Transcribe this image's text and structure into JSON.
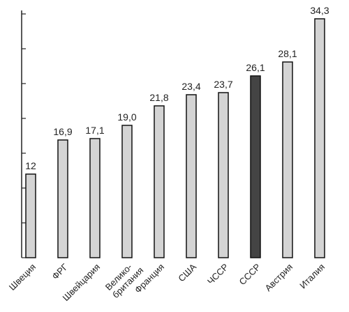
{
  "chart_data": {
    "type": "bar",
    "categories": [
      "Швеция",
      "ФРГ",
      "Швейцария",
      "Велико-\nбритания",
      "Франция",
      "США",
      "ЧССР",
      "СССР",
      "Австрия",
      "Италия"
    ],
    "values": [
      12,
      16.9,
      17.1,
      19.0,
      21.8,
      23.4,
      23.7,
      26.1,
      28.1,
      34.3
    ],
    "value_labels": [
      "12",
      "16,9",
      "17,1",
      "19,0",
      "21,8",
      "23,4",
      "23,7",
      "26,1",
      "28,1",
      "34,3"
    ],
    "colors": [
      "#d4d4d4",
      "#d4d4d4",
      "#d4d4d4",
      "#d4d4d4",
      "#d4d4d4",
      "#d4d4d4",
      "#d4d4d4",
      "#444444",
      "#d4d4d4",
      "#d4d4d4"
    ],
    "ylim": [
      0,
      35
    ],
    "yticks": [
      0,
      5,
      10,
      15,
      20,
      25,
      30,
      35
    ],
    "grid": false
  }
}
